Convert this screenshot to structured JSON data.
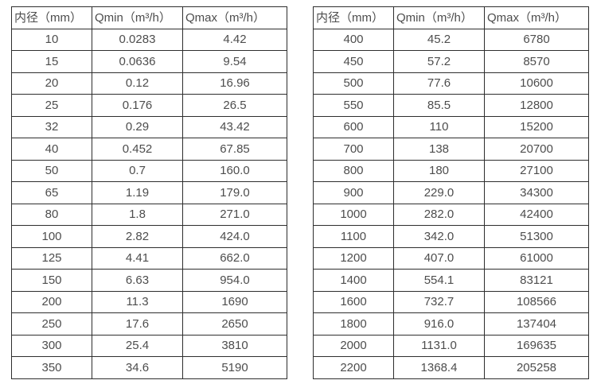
{
  "tables": [
    {
      "name": "spec-table-small-diameters",
      "headers": [
        "内径（mm）",
        "Qmin（m³/h）",
        "Qmax（m³/h）"
      ],
      "rows": [
        [
          "10",
          "0.0283",
          "4.42"
        ],
        [
          "15",
          "0.0636",
          "9.54"
        ],
        [
          "20",
          "0.12",
          "16.96"
        ],
        [
          "25",
          "0.176",
          "26.5"
        ],
        [
          "32",
          "0.29",
          "43.42"
        ],
        [
          "40",
          "0.452",
          "67.85"
        ],
        [
          "50",
          "0.7",
          "160.0"
        ],
        [
          "65",
          "1.19",
          "179.0"
        ],
        [
          "80",
          "1.8",
          "271.0"
        ],
        [
          "100",
          "2.82",
          "424.0"
        ],
        [
          "125",
          "4.41",
          "662.0"
        ],
        [
          "150",
          "6.63",
          "954.0"
        ],
        [
          "200",
          "11.3",
          "1690"
        ],
        [
          "250",
          "17.6",
          "2650"
        ],
        [
          "300",
          "25.4",
          "3810"
        ],
        [
          "350",
          "34.6",
          "5190"
        ]
      ]
    },
    {
      "name": "spec-table-large-diameters",
      "headers": [
        "内径（mm）",
        "Qmin（m³/h）",
        "Qmax（m³/h）"
      ],
      "rows": [
        [
          "400",
          "45.2",
          "6780"
        ],
        [
          "450",
          "57.2",
          "8570"
        ],
        [
          "500",
          "77.6",
          "10600"
        ],
        [
          "550",
          "85.5",
          "12800"
        ],
        [
          "600",
          "110",
          "15200"
        ],
        [
          "700",
          "138",
          "20700"
        ],
        [
          "800",
          "180",
          "27100"
        ],
        [
          "900",
          "229.0",
          "34300"
        ],
        [
          "1000",
          "282.0",
          "42400"
        ],
        [
          "1100",
          "342.0",
          "51300"
        ],
        [
          "1200",
          "407.0",
          "61000"
        ],
        [
          "1400",
          "554.1",
          "83121"
        ],
        [
          "1600",
          "732.7",
          "108566"
        ],
        [
          "1800",
          "916.0",
          "137404"
        ],
        [
          "2000",
          "1131.0",
          "169635"
        ],
        [
          "2200",
          "1368.4",
          "205258"
        ]
      ]
    }
  ],
  "colors": {
    "border": "#2e2e2e",
    "text": "#4d4d4d",
    "background": "#ffffff"
  }
}
